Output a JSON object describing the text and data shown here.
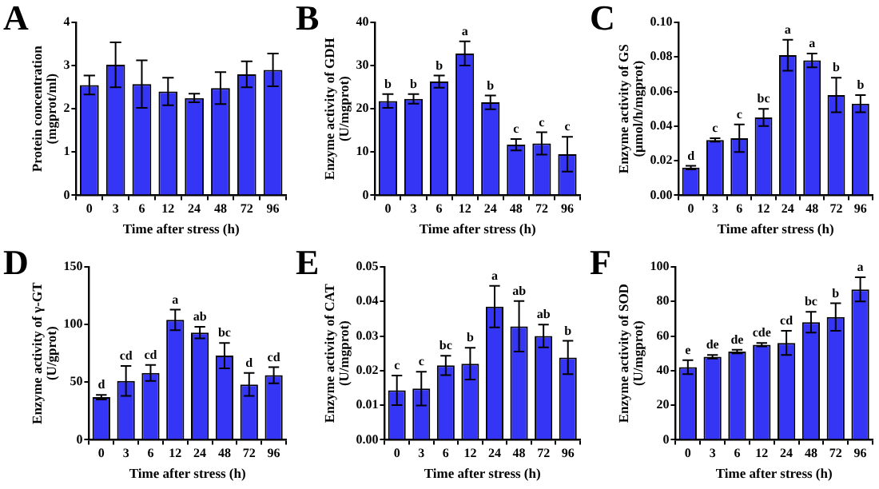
{
  "chart_data": [
    {
      "type": "bar",
      "title": "A",
      "ylabel": "Protein concentration\n(mgprot/ml)",
      "xlabel": "Time after stress (h)",
      "categories": [
        "0",
        "3",
        "6",
        "12",
        "24",
        "48",
        "72",
        "96"
      ],
      "values": [
        2.55,
        3.02,
        2.57,
        2.4,
        2.25,
        2.48,
        2.8,
        2.9
      ],
      "errors": [
        0.22,
        0.52,
        0.55,
        0.32,
        0.1,
        0.37,
        0.3,
        0.38
      ],
      "color": "#3535f5",
      "ylim": [
        0,
        4
      ],
      "yticks": [
        0,
        1,
        2,
        3,
        4
      ],
      "grid": false,
      "legend": false
    },
    {
      "type": "bar",
      "title": "B",
      "ylabel": "Enzyme activity of GDH\n(U/mgprot)",
      "xlabel": "Time after stress (h)",
      "categories": [
        "0",
        "3",
        "6",
        "12",
        "24",
        "48",
        "72",
        "96"
      ],
      "values": [
        21.8,
        22.3,
        26.3,
        32.8,
        21.5,
        11.7,
        12,
        9.5
      ],
      "errors": [
        1.6,
        1.1,
        1.4,
        2.8,
        1.6,
        1.3,
        2.6,
        4.0
      ],
      "color": "#3535f5",
      "ylim": [
        0,
        40
      ],
      "yticks": [
        0,
        10,
        20,
        30,
        40
      ],
      "grid": false,
      "legend": false,
      "annotations": [
        {
          "text": "b",
          "x": "0",
          "y": 23.4
        },
        {
          "text": "b",
          "x": "3",
          "y": 23.4
        },
        {
          "text": "b",
          "x": "6",
          "y": 27.7
        },
        {
          "text": "a",
          "x": "12",
          "y": 35.6
        },
        {
          "text": "b",
          "x": "24",
          "y": 23.1
        },
        {
          "text": "c",
          "x": "48",
          "y": 13.0
        },
        {
          "text": "c",
          "x": "72",
          "y": 14.6
        },
        {
          "text": "c",
          "x": "96",
          "y": 13.5
        }
      ]
    },
    {
      "type": "bar",
      "title": "C",
      "ylabel": "Enzyme activity of GS\n(μmol/h/mgprot)",
      "xlabel": "Time after stress (h)",
      "categories": [
        "0",
        "3",
        "6",
        "12",
        "24",
        "48",
        "72",
        "96"
      ],
      "values": [
        0.016,
        0.032,
        0.033,
        0.045,
        0.081,
        0.078,
        0.058,
        0.053
      ],
      "errors": [
        0.001,
        0.001,
        0.008,
        0.005,
        0.009,
        0.004,
        0.01,
        0.005
      ],
      "color": "#3535f5",
      "ylim": [
        0,
        0.1
      ],
      "yticks": [
        {
          "value": 0,
          "label": "0.00"
        },
        {
          "value": 0.02,
          "label": "0.02"
        },
        {
          "value": 0.04,
          "label": "0.04"
        },
        {
          "value": 0.06,
          "label": "0.06"
        },
        {
          "value": 0.08,
          "label": "0.08"
        },
        {
          "value": 0.1,
          "label": "0.10"
        }
      ],
      "grid": false,
      "legend": false,
      "annotations": [
        {
          "text": "d",
          "x": "0",
          "y": 0.017
        },
        {
          "text": "c",
          "x": "3",
          "y": 0.033
        },
        {
          "text": "c",
          "x": "6",
          "y": 0.041
        },
        {
          "text": "bc",
          "x": "12",
          "y": 0.05
        },
        {
          "text": "a",
          "x": "24",
          "y": 0.09
        },
        {
          "text": "a",
          "x": "48",
          "y": 0.082
        },
        {
          "text": "b",
          "x": "72",
          "y": 0.068
        },
        {
          "text": "b",
          "x": "96",
          "y": 0.058
        }
      ]
    },
    {
      "type": "bar",
      "title": "D",
      "ylabel": "Enzyme activity of γ-GT\n(U/gprot)",
      "xlabel": "Time after stress (h)",
      "categories": [
        "0",
        "3",
        "6",
        "12",
        "24",
        "48",
        "72",
        "96"
      ],
      "values": [
        37,
        51,
        58,
        104,
        93,
        73,
        48,
        56
      ],
      "errors": [
        2,
        13,
        7,
        9,
        5,
        11,
        10,
        7
      ],
      "color": "#3535f5",
      "ylim": [
        0,
        150
      ],
      "yticks": [
        0,
        50,
        100,
        150
      ],
      "grid": false,
      "legend": false,
      "annotations": [
        {
          "text": "d",
          "x": "0",
          "y": 39
        },
        {
          "text": "cd",
          "x": "3",
          "y": 64
        },
        {
          "text": "cd",
          "x": "6",
          "y": 65
        },
        {
          "text": "a",
          "x": "12",
          "y": 113
        },
        {
          "text": "ab",
          "x": "24",
          "y": 98
        },
        {
          "text": "bc",
          "x": "48",
          "y": 84
        },
        {
          "text": "d",
          "x": "72",
          "y": 58
        },
        {
          "text": "cd",
          "x": "96",
          "y": 63
        }
      ]
    },
    {
      "type": "bar",
      "title": "E",
      "ylabel": "Enzyme activity of CAT\n(U/mgprot)",
      "xlabel": "Time after stress (h)",
      "categories": [
        "0",
        "3",
        "6",
        "12",
        "24",
        "48",
        "72",
        "96"
      ],
      "values": [
        0.0143,
        0.0148,
        0.0215,
        0.022,
        0.0385,
        0.0328,
        0.03,
        0.0238
      ],
      "errors": [
        0.0043,
        0.0049,
        0.0028,
        0.0046,
        0.006,
        0.0073,
        0.0033,
        0.0048
      ],
      "color": "#3535f5",
      "ylim": [
        0,
        0.05
      ],
      "yticks": [
        {
          "value": 0,
          "label": "0.00"
        },
        {
          "value": 0.01,
          "label": "0.01"
        },
        {
          "value": 0.02,
          "label": "0.02"
        },
        {
          "value": 0.03,
          "label": "0.03"
        },
        {
          "value": 0.04,
          "label": "0.04"
        },
        {
          "value": 0.05,
          "label": "0.05"
        }
      ],
      "grid": false,
      "legend": false,
      "annotations": [
        {
          "text": "c",
          "x": "0",
          "y": 0.0186
        },
        {
          "text": "c",
          "x": "3",
          "y": 0.0197
        },
        {
          "text": "bc",
          "x": "6",
          "y": 0.0243
        },
        {
          "text": "b",
          "x": "12",
          "y": 0.0266
        },
        {
          "text": "a",
          "x": "24",
          "y": 0.0445
        },
        {
          "text": "ab",
          "x": "48",
          "y": 0.0401
        },
        {
          "text": "ab",
          "x": "72",
          "y": 0.0333
        },
        {
          "text": "b",
          "x": "96",
          "y": 0.0286
        }
      ]
    },
    {
      "type": "bar",
      "title": "F",
      "ylabel": "Enzyme activity of SOD\n(U/mgprot)",
      "xlabel": "Time after stress (h)",
      "categories": [
        "0",
        "3",
        "6",
        "12",
        "24",
        "48",
        "72",
        "96"
      ],
      "values": [
        42,
        48,
        51,
        55,
        56,
        68,
        71,
        87
      ],
      "errors": [
        4,
        1,
        1,
        1,
        7,
        6,
        8,
        7
      ],
      "color": "#3535f5",
      "ylim": [
        0,
        100
      ],
      "yticks": [
        0,
        20,
        40,
        60,
        80,
        100
      ],
      "grid": false,
      "legend": false,
      "annotations": [
        {
          "text": "e",
          "x": "0",
          "y": 46
        },
        {
          "text": "de",
          "x": "3",
          "y": 49
        },
        {
          "text": "de",
          "x": "6",
          "y": 52
        },
        {
          "text": "cde",
          "x": "12",
          "y": 56
        },
        {
          "text": "cd",
          "x": "24",
          "y": 63
        },
        {
          "text": "bc",
          "x": "48",
          "y": 74
        },
        {
          "text": "b",
          "x": "72",
          "y": 79
        },
        {
          "text": "a",
          "x": "96",
          "y": 94
        }
      ]
    }
  ]
}
